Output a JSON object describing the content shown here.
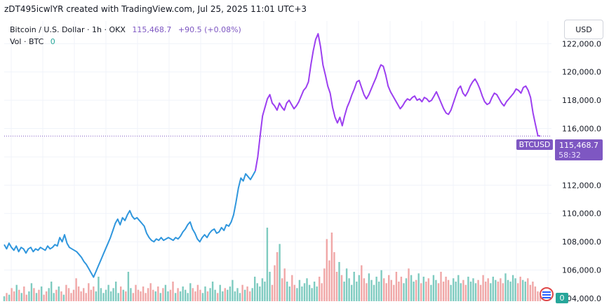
{
  "header": {
    "attribution": "zDT495icwlYR created with TradingView.com, Jul 25, 2025 11:01 UTC+3"
  },
  "legend": {
    "symbol": "Bitcoin / U.S. Dollar · 1h · OKX",
    "last": "115,468.7",
    "change": "+90.5 (+0.08%)",
    "volume_label": "Vol · BTC",
    "volume_value": "0"
  },
  "currency_button": "USD",
  "price_tag": {
    "symbol": "BTCUSD",
    "price": "115,468.7",
    "countdown": "58:32"
  },
  "volume_tag": "0",
  "colors": {
    "blue": "#2f96dd",
    "purple": "#9c3ff0",
    "up": "#7fcbc0",
    "down": "#f0a7a7",
    "grid": "#f0f3fa"
  },
  "chart_data": {
    "type": "line",
    "title": "Bitcoin / U.S. Dollar · 1h · OKX",
    "ylim": [
      103800,
      123600
    ],
    "yticks": [
      "122,000.0",
      "120,000.0",
      "118,000.0",
      "116,000.0",
      "114,000.0",
      "112,000.0",
      "110,000.0",
      "108,000.0",
      "106,000.0",
      "104,000.0"
    ],
    "ytick_values": [
      122000,
      120000,
      118000,
      116000,
      114000,
      112000,
      110000,
      108000,
      106000,
      104000
    ],
    "last_price": 115468.7,
    "series": [
      {
        "name": "BTCUSD",
        "values": [
          107800,
          107500,
          107900,
          107600,
          107400,
          107700,
          107300,
          107600,
          107500,
          107200,
          107500,
          107600,
          107300,
          107500,
          107400,
          107600,
          107500,
          107400,
          107700,
          107500,
          107600,
          107800,
          107700,
          108300,
          108000,
          108500,
          107900,
          107600,
          107500,
          107400,
          107300,
          107100,
          106900,
          106600,
          106400,
          106100,
          105800,
          105500,
          105900,
          106300,
          106700,
          107100,
          107500,
          107900,
          108300,
          108800,
          109300,
          109600,
          109200,
          109700,
          109500,
          109900,
          110200,
          109800,
          109600,
          109700,
          109500,
          109300,
          109100,
          108600,
          108300,
          108100,
          108000,
          108200,
          108100,
          108300,
          108100,
          108200,
          108300,
          108200,
          108100,
          108300,
          108200,
          108400,
          108700,
          108900,
          109200,
          109400,
          108900,
          108600,
          108200,
          108000,
          108300,
          108500,
          108300,
          108600,
          108800,
          108900,
          108600,
          108700,
          109000,
          108800,
          109200,
          109100,
          109400,
          109900,
          110800,
          111800,
          112500,
          112300,
          112800,
          112600,
          112400,
          112700,
          113000,
          114000,
          115500,
          116900,
          117500,
          118100,
          118400,
          117800,
          117600,
          117300,
          117800,
          117500,
          117300,
          117800,
          118000,
          117700,
          117400,
          117600,
          117900,
          118300,
          118700,
          118900,
          119300,
          120500,
          121500,
          122300,
          122700,
          121800,
          120500,
          119800,
          119000,
          118500,
          117500,
          116800,
          116400,
          116800,
          116200,
          116900,
          117500,
          117900,
          118400,
          118800,
          119300,
          119400,
          118900,
          118400,
          118100,
          118400,
          118800,
          119200,
          119600,
          120100,
          120500,
          120400,
          119800,
          119000,
          118600,
          118300,
          118000,
          117700,
          117400,
          117600,
          117900,
          118100,
          118000,
          118200,
          118300,
          118000,
          118100,
          117900,
          118200,
          118100,
          117900,
          118000,
          118300,
          118600,
          118200,
          117800,
          117400,
          117100,
          117000,
          117300,
          117800,
          118300,
          118800,
          119000,
          118500,
          118300,
          118600,
          119000,
          119300,
          119500,
          119200,
          118800,
          118300,
          117900,
          117700,
          117800,
          118200,
          118500,
          118400,
          118100,
          117800,
          117600,
          117900,
          118100,
          118300,
          118500,
          118800,
          118700,
          118500,
          118900,
          119000,
          118700,
          118200,
          117100,
          116300,
          115500,
          115468.7
        ]
      }
    ],
    "color_split_index": 104,
    "volume": [
      3,
      5,
      4,
      8,
      6,
      10,
      7,
      5,
      9,
      4,
      6,
      11,
      8,
      5,
      7,
      9,
      4,
      6,
      8,
      12,
      5,
      7,
      9,
      6,
      4,
      10,
      8,
      5,
      7,
      14,
      9,
      6,
      8,
      5,
      11,
      7,
      9,
      6,
      15,
      8,
      5,
      7,
      10,
      6,
      8,
      12,
      5,
      9,
      7,
      6,
      18,
      8,
      5,
      10,
      7,
      6,
      9,
      5,
      8,
      11,
      7,
      6,
      9,
      5,
      8,
      10,
      6,
      7,
      12,
      5,
      8,
      6,
      9,
      7,
      5,
      11,
      8,
      6,
      10,
      7,
      5,
      9,
      6,
      8,
      12,
      7,
      5,
      10,
      6,
      8,
      7,
      9,
      13,
      6,
      8,
      5,
      10,
      7,
      9,
      6,
      8,
      15,
      11,
      9,
      14,
      12,
      45,
      18,
      10,
      22,
      30,
      35,
      14,
      20,
      12,
      9,
      16,
      10,
      8,
      13,
      9,
      11,
      14,
      10,
      8,
      12,
      9,
      15,
      11,
      20,
      38,
      25,
      42,
      30,
      18,
      24,
      16,
      12,
      20,
      14,
      10,
      18,
      12,
      16,
      22,
      14,
      11,
      17,
      13,
      10,
      15,
      12,
      19,
      14,
      11,
      16,
      13,
      10,
      18,
      12,
      15,
      11,
      14,
      20,
      16,
      12,
      13,
      17,
      11,
      15,
      12,
      14,
      10,
      16,
      13,
      11,
      18,
      12,
      15,
      13,
      10,
      14,
      12,
      16,
      11,
      13,
      10,
      15,
      12,
      14,
      11,
      13,
      10,
      16,
      12,
      14,
      11,
      15,
      13,
      12,
      14,
      11,
      17,
      13,
      12,
      16,
      14,
      11,
      15,
      13,
      12,
      14,
      10,
      12,
      9,
      6,
      3
    ]
  }
}
